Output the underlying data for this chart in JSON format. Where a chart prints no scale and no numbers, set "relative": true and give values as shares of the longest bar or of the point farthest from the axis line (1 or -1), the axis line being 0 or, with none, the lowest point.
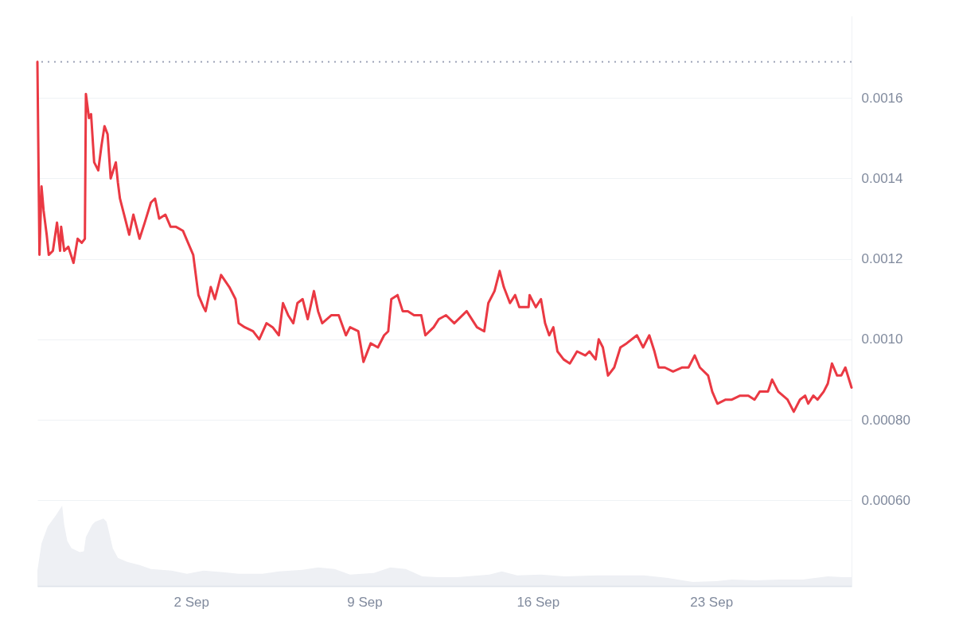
{
  "chart_data": [
    {
      "type": "line",
      "x": [
        "--08-26T19:00",
        "--08-26T21:00",
        "--08-26T23:00",
        "--08-27T01:00",
        "--08-27T04:00",
        "--08-27T06:00",
        "--08-27T10:00",
        "--08-27T14:00",
        "--08-27T17:00",
        "--08-27T18:00",
        "--08-27T21:00",
        "--08-28T01:00",
        "--08-28T06:00",
        "--08-28T10:00",
        "--08-28T14:00",
        "--08-28T17:00",
        "--08-28T18:00",
        "--08-28T21:00",
        "--08-28T23:00",
        "--08-29T02:00",
        "--08-29T06:00",
        "--08-29T09:00",
        "--08-29T12:00",
        "--08-29T15:00",
        "--08-29T18:00",
        "--08-29T23:00",
        "--08-30T01:00",
        "--08-30T03:00",
        "--08-30T07:00",
        "--08-30T12:00",
        "--08-30T16:00",
        "--08-30T22:00",
        "--08-31T03:00",
        "--08-31T09:00",
        "--08-31T13:00",
        "--08-31T17:00",
        "--08-31T23:00",
        "--09-01T04:00",
        "--09-01T09:00",
        "--09-01T16:00",
        "--09-01T21:00",
        "--09-02T02:00",
        "--09-02T07:00",
        "--09-02T12:00",
        "--09-02T14:00",
        "--09-02T19:00",
        "--09-02T23:00",
        "--09-03T05:00",
        "--09-03T13:00",
        "--09-03T19:00",
        "--09-03T22:00",
        "--09-04T04:00",
        "--09-04T12:00",
        "--09-04T18:00",
        "--09-05T01:00",
        "--09-05T07:00",
        "--09-05T13:00",
        "--09-05T17:00",
        "--09-05T22:00",
        "--09-06T03:00",
        "--09-06T07:00",
        "--09-06T12:00",
        "--09-06T17:00",
        "--09-06T23:00",
        "--09-07T03:00",
        "--09-07T07:00",
        "--09-07T16:00",
        "--09-07T23:00",
        "--09-08T06:00",
        "--09-08T10:00",
        "--09-08T18:00",
        "--09-08T23:00",
        "--09-09T06:00",
        "--09-09T13:00",
        "--09-09T19:00",
        "--09-09T23:00",
        "--09-10T02:00",
        "--09-10T08:00",
        "--09-10T13:00",
        "--09-10T18:00",
        "--09-11T00:00",
        "--09-11T07:00",
        "--09-11T11:00",
        "--09-11T19:00",
        "--09-12T00:00",
        "--09-12T07:00",
        "--09-12T15:00",
        "--09-13T03:00",
        "--09-13T13:00",
        "--09-13T20:00",
        "--09-14T00:00",
        "--09-14T06:00",
        "--09-14T11:00",
        "--09-14T15:00",
        "--09-14T21:00",
        "--09-15T02:00",
        "--09-15T06:00",
        "--09-15T15:00",
        "--09-15T16:00",
        "--09-15T22:00",
        "--09-16T03:00",
        "--09-16T07:00",
        "--09-16T11:00",
        "--09-16T15:00",
        "--09-16T19:00",
        "--09-17T01:00",
        "--09-17T07:00",
        "--09-17T14:00",
        "--09-17T22:00",
        "--09-18T02:00",
        "--09-18T08:00",
        "--09-18T11:00",
        "--09-18T15:00",
        "--09-18T20:00",
        "--09-19T02:00",
        "--09-19T08:00",
        "--09-19T14:00",
        "--09-20T00:00",
        "--09-20T06:00",
        "--09-20T12:00",
        "--09-20T17:00",
        "--09-20T21:00",
        "--09-21T03:00",
        "--09-21T11:00",
        "--09-21T20:00",
        "--09-22T02:00",
        "--09-22T08:00",
        "--09-22T13:00",
        "--09-22T21:00",
        "--09-23T01:00",
        "--09-23T06:00",
        "--09-23T14:00",
        "--09-23T20:00",
        "--09-24T04:00",
        "--09-24T12:00",
        "--09-24T18:00",
        "--09-24T23:00",
        "--09-25T07:00",
        "--09-25T11:00",
        "--09-25T17:00",
        "--09-26T02:00",
        "--09-26T08:00",
        "--09-26T14:00",
        "--09-26T19:00",
        "--09-26T22:00",
        "--09-27T03:00",
        "--09-27T07:00",
        "--09-27T13:00",
        "--09-27T17:00",
        "--09-27T21:00",
        "--09-28T02:00",
        "--09-28T06:00",
        "--09-28T10:00",
        "--09-28T16:00"
      ],
      "series": [
        {
          "color": "#ea3943",
          "values": [
            0.00169,
            0.00121,
            0.00138,
            0.00132,
            0.00126,
            0.00121,
            0.00122,
            0.00129,
            0.00122,
            0.00128,
            0.00122,
            0.00123,
            0.00119,
            0.00125,
            0.00124,
            0.00125,
            0.00161,
            0.00155,
            0.00156,
            0.00144,
            0.00142,
            0.00148,
            0.00153,
            0.00151,
            0.0014,
            0.00144,
            0.00139,
            0.00135,
            0.00131,
            0.00126,
            0.00131,
            0.00125,
            0.00129,
            0.00134,
            0.00135,
            0.0013,
            0.00131,
            0.00128,
            0.00128,
            0.00127,
            0.00124,
            0.00121,
            0.00111,
            0.00108,
            0.00107,
            0.00113,
            0.0011,
            0.00116,
            0.00113,
            0.0011,
            0.00104,
            0.00103,
            0.00102,
            0.001,
            0.00104,
            0.00103,
            0.00101,
            0.00109,
            0.00106,
            0.00104,
            0.00109,
            0.0011,
            0.00105,
            0.00112,
            0.00107,
            0.00104,
            0.00106,
            0.00106,
            0.00101,
            0.00103,
            0.00102,
            0.000944,
            0.00099,
            0.00098,
            0.00101,
            0.00102,
            0.0011,
            0.00111,
            0.00107,
            0.00107,
            0.00106,
            0.00106,
            0.00101,
            0.00103,
            0.00105,
            0.00106,
            0.00104,
            0.00107,
            0.00103,
            0.00102,
            0.00109,
            0.00112,
            0.00117,
            0.00113,
            0.00109,
            0.00111,
            0.00108,
            0.00108,
            0.00111,
            0.00108,
            0.0011,
            0.00104,
            0.00101,
            0.00103,
            0.00097,
            0.00095,
            0.00094,
            0.00097,
            0.00096,
            0.00097,
            0.00095,
            0.001,
            0.00098,
            0.00091,
            0.00093,
            0.00098,
            0.00099,
            0.00101,
            0.00098,
            0.00101,
            0.00097,
            0.00093,
            0.00093,
            0.00092,
            0.00093,
            0.00093,
            0.00096,
            0.00093,
            0.00091,
            0.00087,
            0.00084,
            0.00085,
            0.00085,
            0.00086,
            0.00086,
            0.00085,
            0.00087,
            0.00087,
            0.0009,
            0.00087,
            0.00085,
            0.00082,
            0.00085,
            0.00086,
            0.00084,
            0.00086,
            0.00085,
            0.00087,
            0.00089,
            0.00094,
            0.00091,
            0.00091,
            0.00093,
            0.00088
          ]
        }
      ],
      "xlim": [
        "--08-26T19:00",
        "--09-28T16:00"
      ],
      "ylim": [
        0.000387,
        0.001804
      ],
      "yticks": [
        {
          "value": 0.0006,
          "label": "0.00060"
        },
        {
          "value": 0.0008,
          "label": "0.00080"
        },
        {
          "value": 0.001,
          "label": "0.0010"
        },
        {
          "value": 0.0012,
          "label": "0.0012"
        },
        {
          "value": 0.0014,
          "label": "0.0014"
        },
        {
          "value": 0.0016,
          "label": "0.0016"
        }
      ],
      "ref_lines": [
        {
          "axis": "y",
          "value": 0.00169,
          "color": "#a1a7bb",
          "line_style": "dotted"
        }
      ],
      "grid": "y",
      "tick_labels": "y"
    },
    {
      "type": "area",
      "relative": true,
      "x": [
        "--08-26T19:00",
        "--08-26T23:00",
        "--08-27T05:00",
        "--08-27T13:00",
        "--08-27T19:00",
        "--08-27T21:00",
        "--08-28T00:00",
        "--08-28T04:00",
        "--08-28T12:00",
        "--08-28T16:00",
        "--08-28T18:00",
        "--08-29T00:00",
        "--08-29T03:00",
        "--08-29T11:00",
        "--08-29T14:00",
        "--08-29T17:00",
        "--08-29T20:00",
        "--08-30T01:00",
        "--08-30T10:00",
        "--08-30T22:00",
        "--08-31T09:00",
        "--09-01T05:00",
        "--09-01T20:00",
        "--09-02T12:00",
        "--09-03T07:00",
        "--09-03T22:00",
        "--09-04T21:00",
        "--09-05T13:00",
        "--09-06T12:00",
        "--09-07T03:00",
        "--09-07T19:00",
        "--09-08T10:00",
        "--09-09T09:00",
        "--09-10T01:00",
        "--09-10T16:00",
        "--09-11T08:00",
        "--09-11T23:00",
        "--09-12T18:00",
        "--09-14T01:00",
        "--09-14T13:00",
        "--09-15T04:00",
        "--09-16T03:00",
        "--09-17T02:00",
        "--09-18T09:00",
        "--09-19T08:00",
        "--09-20T07:00",
        "--09-21T06:00",
        "--09-22T06:00",
        "--09-23T05:00",
        "--09-23T20:00",
        "--09-24T19:00",
        "--09-25T18:00",
        "--09-26T17:00",
        "--09-27T17:00",
        "--09-28T08:00",
        "--09-28T16:00"
      ],
      "series": [
        {
          "color": "#eef0f4",
          "values": [
            0.19,
            0.53,
            0.74,
            0.88,
            1,
            0.76,
            0.56,
            0.47,
            0.42,
            0.43,
            0.61,
            0.76,
            0.8,
            0.84,
            0.8,
            0.64,
            0.47,
            0.35,
            0.3,
            0.26,
            0.21,
            0.19,
            0.15,
            0.19,
            0.17,
            0.15,
            0.15,
            0.18,
            0.2,
            0.23,
            0.21,
            0.14,
            0.16,
            0.23,
            0.21,
            0.12,
            0.11,
            0.11,
            0.14,
            0.18,
            0.13,
            0.14,
            0.12,
            0.13,
            0.13,
            0.13,
            0.1,
            0.05,
            0.06,
            0.08,
            0.07,
            0.08,
            0.08,
            0.12,
            0.11,
            0.11
          ]
        }
      ],
      "xlim": [
        "--08-26T19:00",
        "--09-28T16:00"
      ],
      "xticks": [
        {
          "value": "--09-02",
          "label": "2 Sep"
        },
        {
          "value": "--09-09",
          "label": "9 Sep"
        },
        {
          "value": "--09-16",
          "label": "16 Sep"
        },
        {
          "value": "--09-23",
          "label": "23 Sep"
        }
      ],
      "tick_labels": "x"
    }
  ]
}
